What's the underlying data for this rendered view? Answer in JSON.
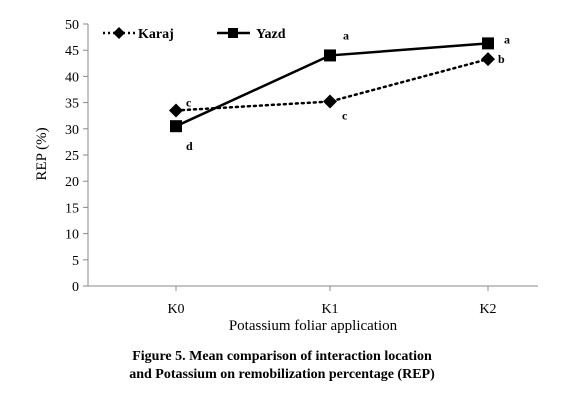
{
  "chart_data": {
    "type": "line",
    "categories": [
      "K0",
      "K1",
      "K2"
    ],
    "xlabel": "Potassium foliar application",
    "ylabel": "REP (%)",
    "ylim": [
      0,
      50
    ],
    "yticks": [
      0,
      5,
      10,
      15,
      20,
      25,
      30,
      35,
      40,
      45,
      50
    ],
    "grid": false,
    "legend_position": "top-left",
    "series": [
      {
        "name": "Karaj",
        "values": [
          33.5,
          35.2,
          43.3
        ],
        "letters": [
          "c",
          "c",
          "b"
        ],
        "line_style": "dotted",
        "marker": "diamond",
        "color": "#000000"
      },
      {
        "name": "Yazd",
        "values": [
          30.5,
          44.0,
          46.3
        ],
        "letters": [
          "d",
          "a",
          "a"
        ],
        "line_style": "solid",
        "marker": "square",
        "color": "#000000"
      }
    ]
  },
  "caption": {
    "line1": "Figure 5. Mean comparison of interaction location",
    "line2": "and Potassium on remobilization percentage (REP)"
  }
}
